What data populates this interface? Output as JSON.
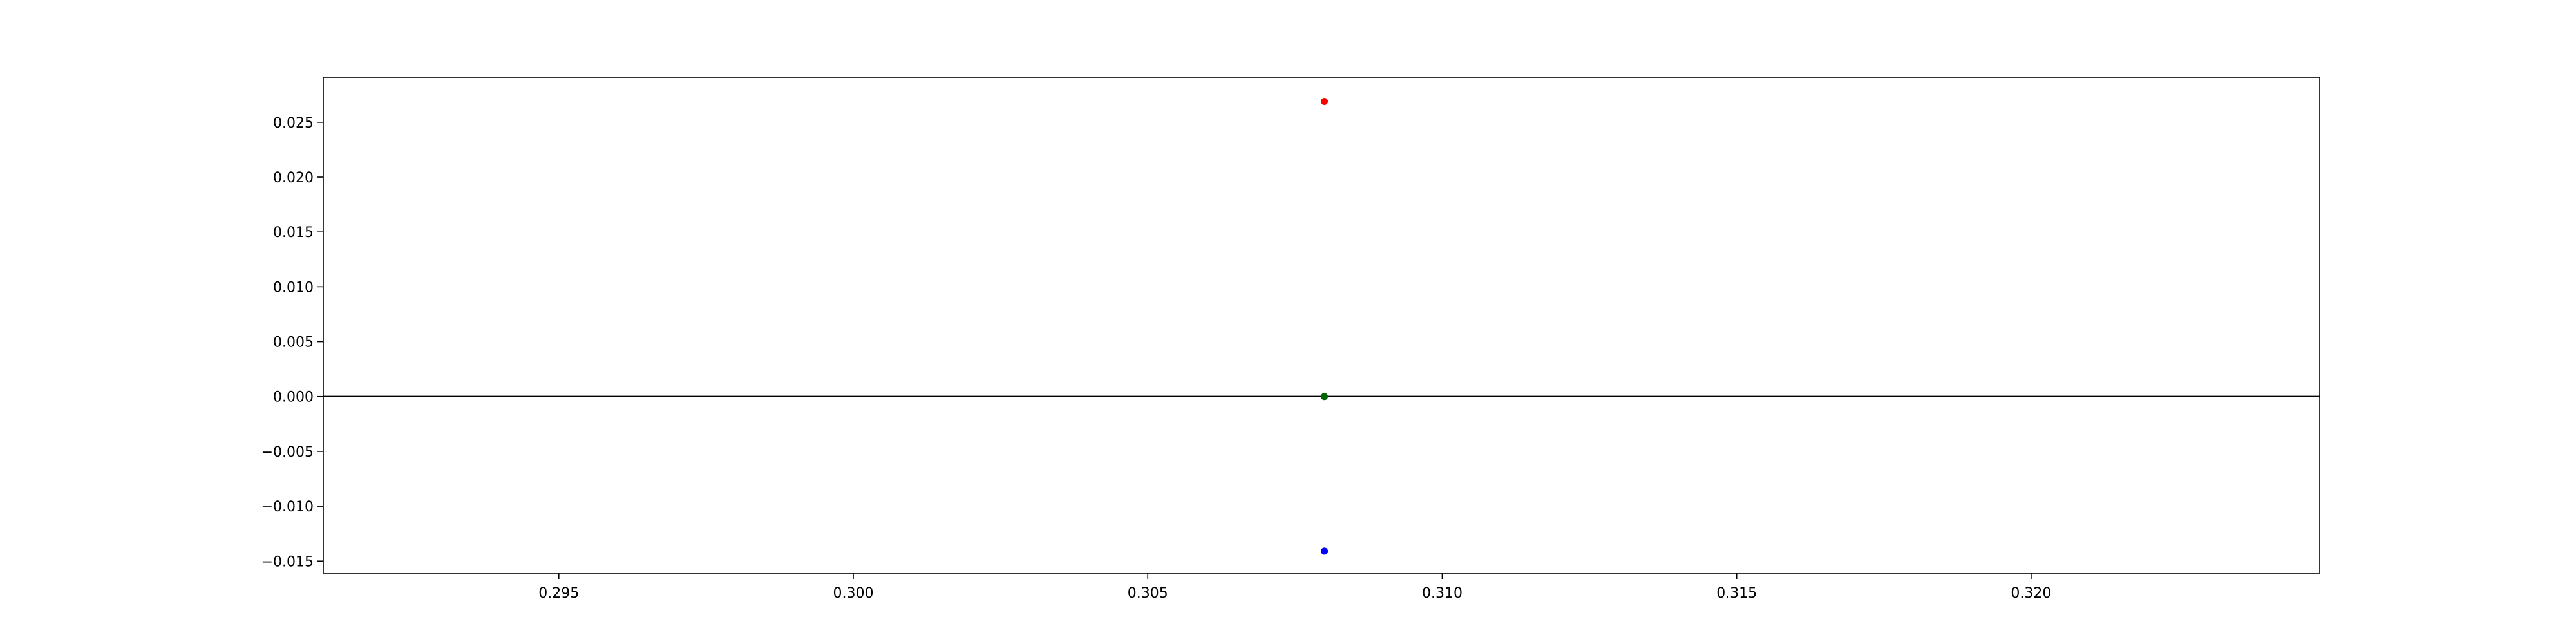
{
  "chart_data": {
    "type": "scatter",
    "title": "",
    "xlabel": "",
    "ylabel": "",
    "xlim": [
      0.291,
      0.3249
    ],
    "ylim": [
      -0.0161,
      0.0291
    ],
    "grid": false,
    "xticks": [
      0.295,
      0.3,
      0.305,
      0.31,
      0.315,
      0.32
    ],
    "yticks": [
      -0.015,
      -0.01,
      -0.005,
      0.0,
      0.005,
      0.01,
      0.015,
      0.02,
      0.025
    ],
    "xtick_labels": [
      "0.295",
      "0.300",
      "0.305",
      "0.310",
      "0.315",
      "0.320"
    ],
    "ytick_labels": [
      "−0.015",
      "−0.010",
      "−0.005",
      "0.000",
      "0.005",
      "0.010",
      "0.015",
      "0.020",
      "0.025"
    ],
    "hline": {
      "y": 0.0,
      "color": "#000000"
    },
    "points": [
      {
        "x": 0.308,
        "y": 0.0269,
        "color": "#ff0000"
      },
      {
        "x": 0.308,
        "y": 0.0,
        "color": "#006400"
      },
      {
        "x": 0.308,
        "y": -0.0141,
        "color": "#0000ff"
      }
    ]
  }
}
